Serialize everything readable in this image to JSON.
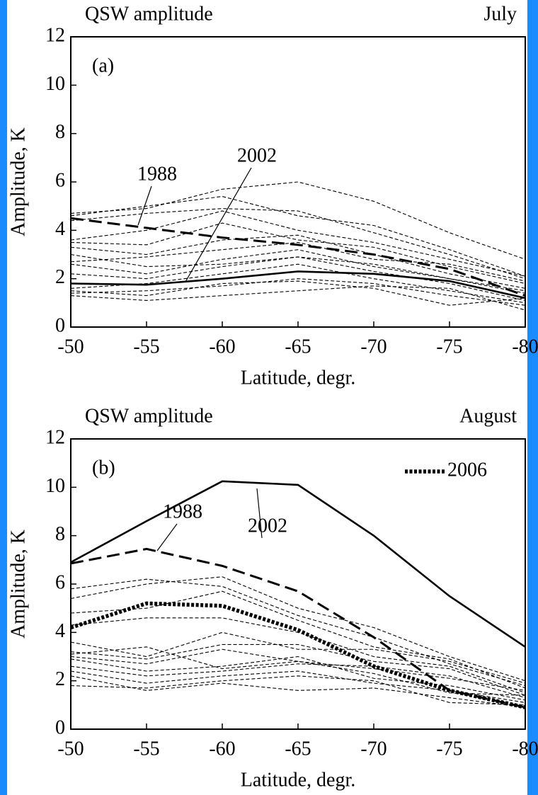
{
  "chart_data": [
    {
      "type": "line",
      "title": "QSW amplitude",
      "subtitle": "July",
      "panel_label": "(a)",
      "x_label": "Latitude, degr.",
      "y_label": "Amplitude, K",
      "x": [
        -50,
        -55,
        -60,
        -65,
        -70,
        -75,
        -80
      ],
      "xlim": [
        -50,
        -80
      ],
      "xticks": [
        -50,
        -55,
        -60,
        -65,
        -70,
        -75,
        -80
      ],
      "ylim": [
        0,
        12
      ],
      "yticks": [
        0,
        2,
        4,
        6,
        8,
        10,
        12
      ],
      "series": [
        {
          "name": "1988",
          "color": "#000000",
          "style": "long-dashed",
          "values": [
            4.5,
            4.1,
            3.7,
            3.4,
            3.0,
            2.4,
            1.3
          ]
        },
        {
          "name": "2002",
          "color": "#000000",
          "style": "solid",
          "values": [
            1.8,
            1.75,
            2.0,
            2.3,
            2.2,
            1.9,
            1.2
          ]
        },
        {
          "color": "#000000",
          "style": "dashed",
          "values": [
            4.7,
            4.9,
            5.7,
            6.0,
            5.2,
            3.9,
            2.8
          ]
        },
        {
          "color": "#000000",
          "style": "dashed",
          "values": [
            4.6,
            5.0,
            5.4,
            4.6,
            4.2,
            3.2,
            2.1
          ]
        },
        {
          "color": "#000000",
          "style": "dashed",
          "values": [
            4.4,
            4.7,
            4.9,
            4.8,
            3.9,
            3.0,
            2.0
          ]
        },
        {
          "color": "#000000",
          "style": "dashed",
          "values": [
            3.6,
            4.0,
            4.8,
            4.0,
            3.5,
            2.8,
            2.1
          ]
        },
        {
          "color": "#000000",
          "style": "dashed",
          "values": [
            3.5,
            3.4,
            4.3,
            3.6,
            3.3,
            2.5,
            1.8
          ]
        },
        {
          "color": "#000000",
          "style": "dashed",
          "values": [
            3.3,
            3.0,
            3.6,
            3.8,
            3.0,
            2.2,
            1.6
          ]
        },
        {
          "color": "#000000",
          "style": "dashed",
          "values": [
            2.7,
            2.9,
            3.2,
            3.5,
            2.8,
            2.6,
            1.9
          ]
        },
        {
          "color": "#000000",
          "style": "dashed",
          "values": [
            2.6,
            2.2,
            2.8,
            3.2,
            2.5,
            2.0,
            1.4
          ]
        },
        {
          "color": "#000000",
          "style": "dashed",
          "values": [
            2.2,
            2.0,
            2.5,
            2.9,
            2.3,
            1.8,
            1.1
          ]
        },
        {
          "color": "#000000",
          "style": "dashed",
          "values": [
            1.6,
            1.8,
            2.2,
            2.6,
            2.0,
            1.5,
            1.0
          ]
        },
        {
          "color": "#000000",
          "style": "dashed",
          "values": [
            1.4,
            1.5,
            1.7,
            2.0,
            1.8,
            1.3,
            0.9
          ]
        },
        {
          "color": "#000000",
          "style": "dashed",
          "values": [
            1.3,
            1.1,
            1.3,
            1.5,
            1.7,
            1.6,
            0.7
          ]
        },
        {
          "color": "#000000",
          "style": "dashed",
          "values": [
            1.5,
            1.3,
            1.8,
            1.9,
            1.6,
            0.9,
            1.2
          ]
        },
        {
          "color": "#000000",
          "style": "dashed",
          "values": [
            3.0,
            2.5,
            2.6,
            2.9,
            2.6,
            2.0,
            1.5
          ]
        }
      ]
    },
    {
      "type": "line",
      "title": "QSW amplitude",
      "subtitle": "August",
      "panel_label": "(b)",
      "x_label": "Latitude, degr.",
      "y_label": "Amplitude, K",
      "x": [
        -50,
        -55,
        -60,
        -65,
        -70,
        -75,
        -80
      ],
      "xlim": [
        -50,
        -80
      ],
      "xticks": [
        -50,
        -55,
        -60,
        -65,
        -70,
        -75,
        -80
      ],
      "ylim": [
        0,
        12
      ],
      "yticks": [
        0,
        2,
        4,
        6,
        8,
        10,
        12
      ],
      "series": [
        {
          "name": "2002",
          "color": "#000000",
          "style": "solid",
          "values": [
            6.9,
            8.6,
            10.25,
            10.1,
            8.0,
            5.5,
            3.4
          ]
        },
        {
          "name": "1988",
          "color": "#000000",
          "style": "long-dashed",
          "values": [
            6.85,
            7.45,
            6.75,
            5.7,
            3.8,
            1.6,
            0.9
          ]
        },
        {
          "name": "2006",
          "color": "#000000",
          "style": "dotted",
          "legend": true,
          "values": [
            4.2,
            5.2,
            5.1,
            4.1,
            2.6,
            1.6,
            0.9
          ]
        },
        {
          "color": "#000000",
          "style": "dashed",
          "values": [
            5.8,
            6.2,
            5.9,
            4.7,
            3.8,
            2.7,
            1.8
          ]
        },
        {
          "color": "#000000",
          "style": "dashed",
          "values": [
            5.4,
            6.0,
            6.3,
            5.0,
            4.2,
            3.0,
            2.0
          ]
        },
        {
          "color": "#000000",
          "style": "dashed",
          "values": [
            4.8,
            5.0,
            5.7,
            4.5,
            3.4,
            2.9,
            1.7
          ]
        },
        {
          "color": "#000000",
          "style": "dashed",
          "values": [
            4.3,
            4.6,
            4.6,
            4.0,
            3.0,
            2.6,
            1.5
          ]
        },
        {
          "color": "#000000",
          "style": "dashed",
          "values": [
            3.6,
            3.0,
            4.0,
            3.3,
            3.3,
            2.8,
            1.9
          ]
        },
        {
          "color": "#000000",
          "style": "dashed",
          "values": [
            3.2,
            2.9,
            3.5,
            3.5,
            2.8,
            2.5,
            1.4
          ]
        },
        {
          "color": "#000000",
          "style": "dashed",
          "values": [
            3.0,
            2.7,
            3.3,
            2.8,
            2.5,
            2.1,
            1.6
          ]
        },
        {
          "color": "#000000",
          "style": "dashed",
          "values": [
            2.9,
            2.4,
            2.6,
            3.0,
            2.1,
            1.8,
            1.2
          ]
        },
        {
          "color": "#000000",
          "style": "dashed",
          "values": [
            2.6,
            2.2,
            2.4,
            2.7,
            2.6,
            2.2,
            1.3
          ]
        },
        {
          "color": "#000000",
          "style": "dashed",
          "values": [
            2.4,
            1.9,
            2.2,
            2.4,
            1.9,
            1.6,
            1.1
          ]
        },
        {
          "color": "#000000",
          "style": "dashed",
          "values": [
            2.2,
            1.6,
            1.9,
            1.6,
            1.7,
            1.3,
            0.9
          ]
        },
        {
          "color": "#000000",
          "style": "dashed",
          "values": [
            1.8,
            1.7,
            2.0,
            2.2,
            2.0,
            1.1,
            1.0
          ]
        },
        {
          "color": "#000000",
          "style": "dashed",
          "values": [
            3.1,
            3.4,
            2.5,
            2.8,
            2.3,
            1.5,
            1.4
          ]
        }
      ]
    }
  ]
}
